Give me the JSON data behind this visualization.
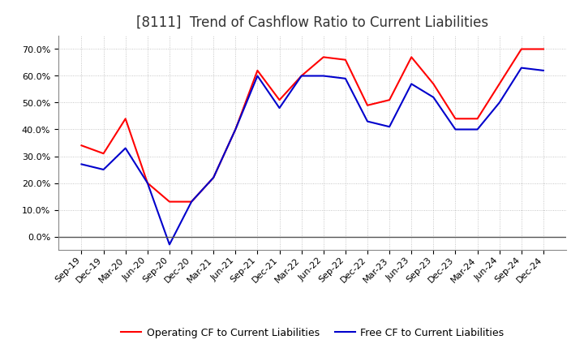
{
  "title": "[8111]  Trend of Cashflow Ratio to Current Liabilities",
  "x_labels": [
    "Sep-19",
    "Dec-19",
    "Mar-20",
    "Jun-20",
    "Sep-20",
    "Dec-20",
    "Mar-21",
    "Jun-21",
    "Sep-21",
    "Dec-21",
    "Mar-22",
    "Jun-22",
    "Sep-22",
    "Dec-22",
    "Mar-23",
    "Jun-23",
    "Sep-23",
    "Dec-23",
    "Mar-24",
    "Jun-24",
    "Sep-24",
    "Dec-24"
  ],
  "operating_cf": [
    0.34,
    0.31,
    0.44,
    0.2,
    0.13,
    0.13,
    0.22,
    0.4,
    0.62,
    0.51,
    0.6,
    0.67,
    0.66,
    0.49,
    0.51,
    0.67,
    0.57,
    0.44,
    0.44,
    0.57,
    0.7,
    0.7
  ],
  "free_cf": [
    0.27,
    0.25,
    0.33,
    0.2,
    -0.03,
    0.13,
    0.22,
    0.4,
    0.6,
    0.48,
    0.6,
    0.6,
    0.59,
    0.43,
    0.41,
    0.57,
    0.52,
    0.4,
    0.4,
    0.5,
    0.63,
    0.62
  ],
  "operating_color": "#FF0000",
  "free_color": "#0000CC",
  "ylim": [
    -0.05,
    0.75
  ],
  "yticks": [
    0.0,
    0.1,
    0.2,
    0.3,
    0.4,
    0.5,
    0.6,
    0.7
  ],
  "legend_operating": "Operating CF to Current Liabilities",
  "legend_free": "Free CF to Current Liabilities",
  "bg_color": "#FFFFFF",
  "plot_bg_color": "#FFFFFF",
  "grid_color": "#999999",
  "title_fontsize": 12,
  "axis_fontsize": 8,
  "legend_fontsize": 9,
  "title_color": "#333333"
}
